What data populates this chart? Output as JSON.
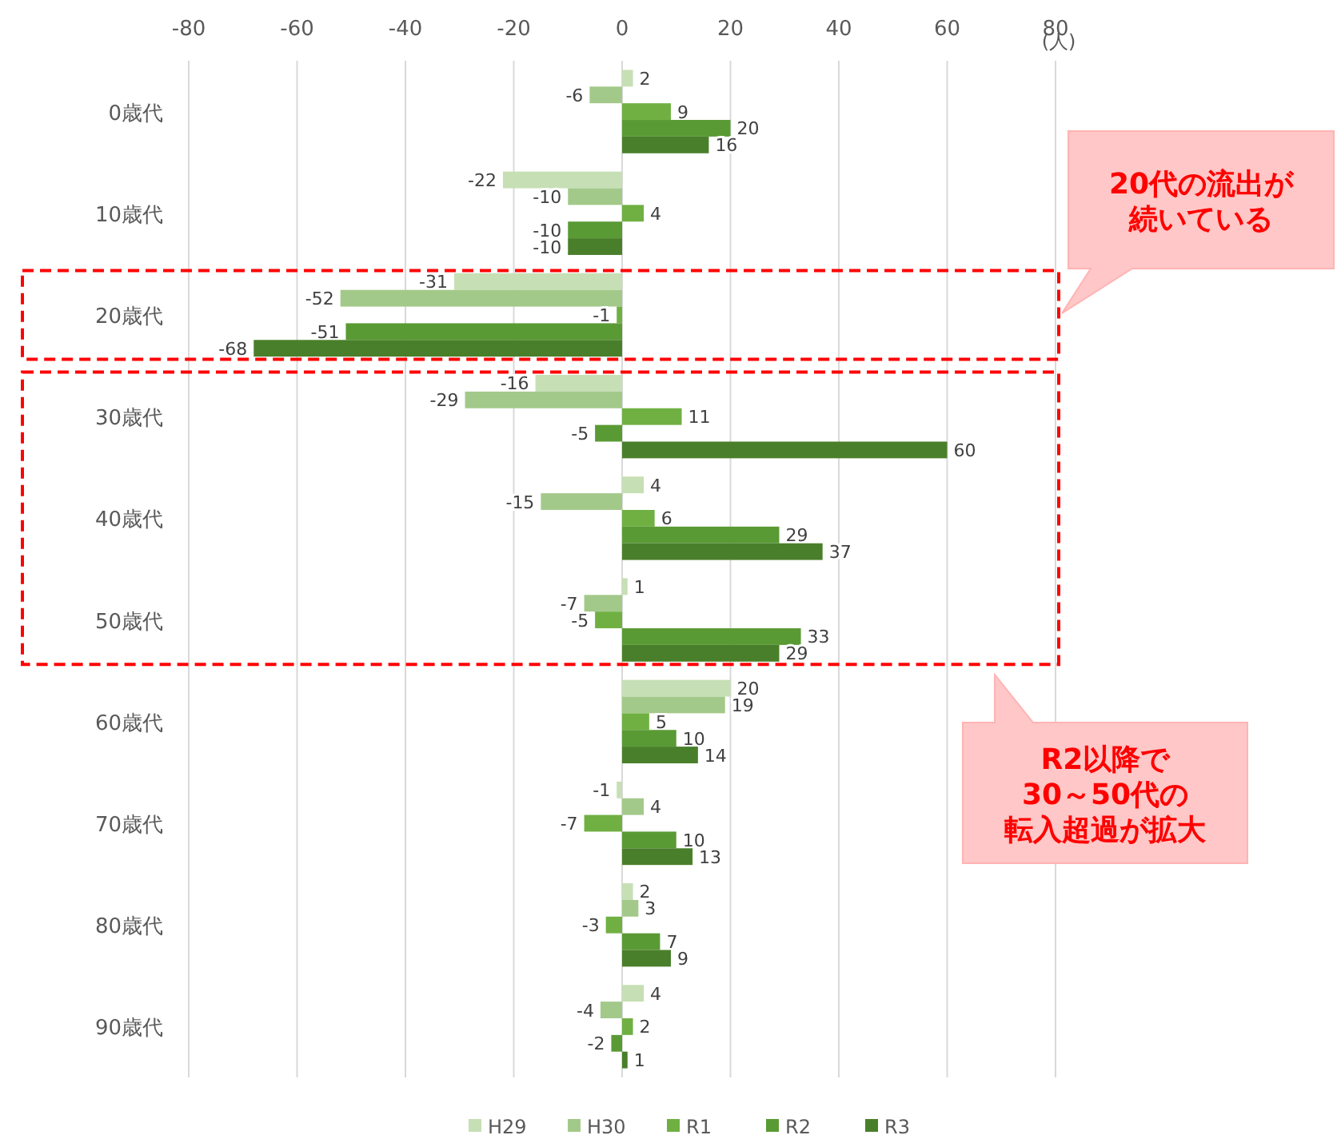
{
  "chart_data": {
    "type": "bar",
    "orientation": "horizontal",
    "categories": [
      "0歳代",
      "10歳代",
      "20歳代",
      "30歳代",
      "40歳代",
      "50歳代",
      "60歳代",
      "70歳代",
      "80歳代",
      "90歳代"
    ],
    "series": [
      {
        "name": "H29",
        "color": "#c6dfb4",
        "values": [
          2,
          -22,
          -31,
          -16,
          4,
          1,
          20,
          -1,
          2,
          4
        ]
      },
      {
        "name": "H30",
        "color": "#a3c98a",
        "values": [
          -6,
          -10,
          -52,
          -29,
          -15,
          -7,
          19,
          4,
          3,
          -4
        ]
      },
      {
        "name": "R1",
        "color": "#70b043",
        "values": [
          9,
          4,
          -1,
          11,
          6,
          -5,
          5,
          -7,
          -3,
          2
        ]
      },
      {
        "name": "R2",
        "color": "#5a9a35",
        "values": [
          20,
          -10,
          -51,
          -5,
          29,
          33,
          10,
          10,
          7,
          -2
        ]
      },
      {
        "name": "R3",
        "color": "#497f2a",
        "values": [
          16,
          -10,
          -68,
          60,
          37,
          29,
          14,
          13,
          9,
          1
        ]
      }
    ],
    "xlim": [
      -80,
      80
    ],
    "xticks": [
      -80,
      -60,
      -40,
      -20,
      0,
      20,
      40,
      60,
      80
    ],
    "xlabel": "(人)",
    "grid": "x",
    "data_labels": true,
    "legend": "bottom",
    "annotations": [
      "20代の流出が",
      "続いている",
      "R2以降で",
      "30～50代の",
      "転入超過が拡大"
    ]
  }
}
